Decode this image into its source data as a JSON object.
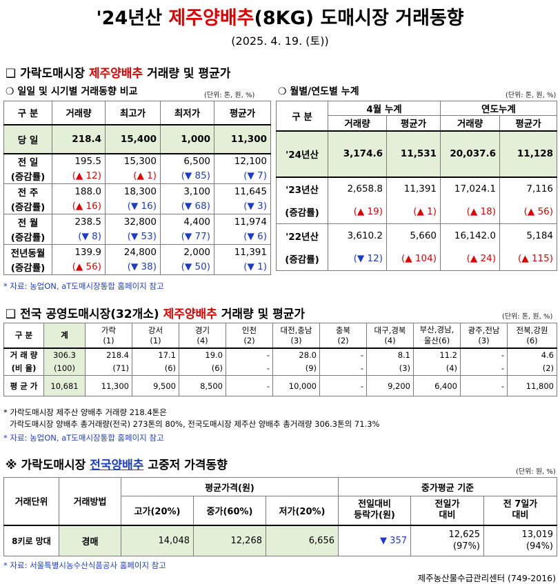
{
  "title": {
    "pre": "'24년산 ",
    "highlight": "제주양배추",
    "post": "(8KG) 도매시장 거래동향"
  },
  "date": "(2025. 4. 19. (토))",
  "section1": {
    "bullet": "❑",
    "pre": "가락도매시장 ",
    "highlight": "제주양배추",
    "post": " 거래량 및 평균가",
    "left": {
      "subtitle": "❍ 일일 및 시기별 거래동향 비교",
      "unit": "(단위: 톤, 원, %)",
      "headers": [
        "구 분",
        "거래량",
        "최고가",
        "최저가",
        "평균가"
      ],
      "today": {
        "label": "당 일",
        "values": [
          "218.4",
          "15,400",
          "1,000",
          "11,300"
        ]
      },
      "groups": [
        {
          "label": "전 일",
          "values": [
            "195.5",
            "15,300",
            "6,500",
            "12,100"
          ],
          "clabel": "(증감률)",
          "changes": [
            "(▲ 12)",
            "(▲ 1)",
            "(▼ 85)",
            "(▼ 7)"
          ]
        },
        {
          "label": "전 주",
          "values": [
            "188.0",
            "18,300",
            "3,100",
            "11,645"
          ],
          "clabel": "(증감률)",
          "changes": [
            "(▲ 16)",
            "(▼ 16)",
            "(▼ 68)",
            "(▼ 3)"
          ]
        },
        {
          "label": "전 월",
          "values": [
            "238.5",
            "32,800",
            "4,400",
            "11,974"
          ],
          "clabel": "(증감률)",
          "changes": [
            "(▼ 8)",
            "(▼ 53)",
            "(▼ 77)",
            "(▼ 6)"
          ]
        },
        {
          "label": "전년동월",
          "values": [
            "139.9",
            "24,800",
            "2,000",
            "11,391"
          ],
          "clabel": "(증감률)",
          "changes": [
            "(▲ 56)",
            "(▼ 38)",
            "(▼ 50)",
            "(▼ 1)"
          ]
        }
      ]
    },
    "right": {
      "subtitle": "❍ 월별/연도별 누계",
      "unit": "(단위: 톤, 원, %)",
      "h_label": "구 분",
      "h_april": "4월 누계",
      "h_year": "연도누계",
      "h_sub": [
        "거래량",
        "평균가",
        "거래량",
        "평균가"
      ],
      "current": {
        "label": "'24년산",
        "values": [
          "3,174.6",
          "11,531",
          "20,037.6",
          "11,128"
        ]
      },
      "groups": [
        {
          "label": "'23년산",
          "values": [
            "2,658.8",
            "11,391",
            "17,024.1",
            "7,116"
          ],
          "clabel": "(증감률)",
          "changes": [
            "(▲ 19)",
            "(▲ 1)",
            "(▲ 18)",
            "(▲ 56)"
          ]
        },
        {
          "label": "'22년산",
          "values": [
            "3,610.2",
            "5,660",
            "16,142.0",
            "5,184"
          ],
          "clabel": "(증감률)",
          "changes": [
            "(▼ 12)",
            "(▲ 104)",
            "(▲ 24)",
            "(▲ 115)"
          ]
        }
      ]
    },
    "source": "* 자료: 농업ON, aT도매시장통합 홈페이지 참고"
  },
  "section2": {
    "bullet": "❑",
    "pre": "전국 공영도매시장(32개소) ",
    "highlight": "제주양배추",
    "post": " 거래량 및 평균가",
    "unit": "(단위: 톤, 원, %)",
    "headers": [
      {
        "l1": "구 분",
        "l2": ""
      },
      {
        "l1": "계",
        "l2": ""
      },
      {
        "l1": "가락",
        "l2": "(1)"
      },
      {
        "l1": "강서",
        "l2": "(1)"
      },
      {
        "l1": "경기",
        "l2": "(4)"
      },
      {
        "l1": "인천",
        "l2": "(2)"
      },
      {
        "l1": "대전,충남",
        "l2": "(3)"
      },
      {
        "l1": "충북",
        "l2": "(2)"
      },
      {
        "l1": "대구,경북",
        "l2": "(4)"
      },
      {
        "l1": "부산,경남,",
        "l2": "울산(6)"
      },
      {
        "l1": "광주,전남",
        "l2": "(3)"
      },
      {
        "l1": "전북,강원",
        "l2": "(6)"
      }
    ],
    "rows": [
      {
        "label": "거 래 량",
        "values": [
          "306.3",
          "218.4",
          "17.1",
          "19.0",
          "-",
          "28.0",
          "-",
          "8.1",
          "11.2",
          "-",
          "4.6"
        ]
      },
      {
        "label": "(비 율)",
        "values": [
          "(100)",
          "(71)",
          "(6)",
          "(6)",
          "-",
          "(9)",
          "-",
          "(3)",
          "(4)",
          "-",
          "(2)"
        ]
      },
      {
        "label": "평 균 가",
        "values": [
          "10,681",
          "11,300",
          "9,500",
          "8,500",
          "-",
          "10,000",
          "-",
          "9,200",
          "6,400",
          "-",
          "11,800"
        ]
      }
    ],
    "note1": "* 가락도매시장 제주산 양배추 거래량 218.4톤은",
    "note2": "가락도매시장 양배추 총거래량(전국) 273톤의 80%, 전국도매시장 제주산 양배추 총거래량 306.3톤의 71.3%",
    "source": "* 자료: 농업ON, aT도매시장통합 홈페이지 참고"
  },
  "section3": {
    "mark": "※",
    "pre": "가락도매시장 ",
    "highlight": "전국양배추",
    "post": " 고중저 가격동향",
    "unit": "(단위: 원, %)",
    "h_unit": "거래단위",
    "h_method": "거래방법",
    "h_avg": "평균가격(원)",
    "h_mid": "중가평균 기준",
    "h_high": "고가(20%)",
    "h_middle": "중가(60%)",
    "h_low": "저가(20%)",
    "h_prev_day_diff": "전일대비\n등락가(원)",
    "h_prev_day": "전일가\n대비",
    "h_prev_7": "전 7일가\n대비",
    "row": {
      "unit": "8키로 망대",
      "method": "경매",
      "high": "14,048",
      "middle": "12,268",
      "low": "6,656",
      "diff": "▼ 357",
      "prev_day": "12,625",
      "prev_day_pct": "(97%)",
      "prev_7": "13,019",
      "prev_7_pct": "(94%)"
    },
    "source": "* 자료: 서울특별시농수산식품공사 홈페이지 참고"
  },
  "footer": "제주농산물수급관리센터 (749-2016)"
}
